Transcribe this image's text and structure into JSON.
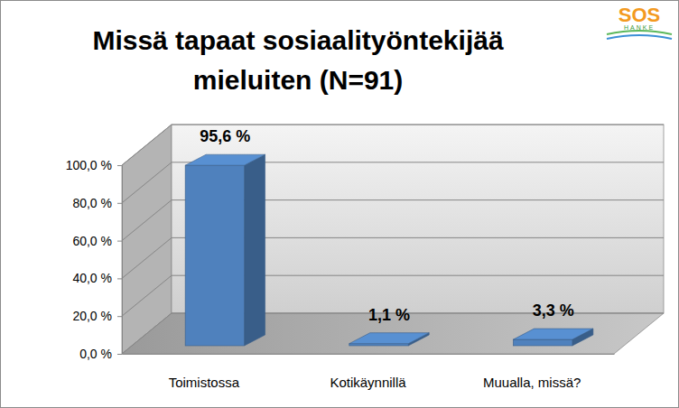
{
  "chart_data": {
    "type": "bar",
    "title": "Missä tapaat sosiaalityöntekijää mieluiten (N=91)",
    "annotations": [
      "SOS",
      "HANKE"
    ],
    "categories": [
      "Toimistossa",
      "Kotikäynnillä",
      "Muualla, missä?"
    ],
    "values": [
      95.6,
      1.1,
      3.3
    ],
    "value_labels": [
      "95,6 %",
      "1,1 %",
      "3,3 %"
    ],
    "color": "#4f81bd",
    "ylim": [
      0,
      100
    ],
    "yticks": [
      {
        "value": 0,
        "label": "0,0 %"
      },
      {
        "value": 20,
        "label": "20,0 %"
      },
      {
        "value": 40,
        "label": "40,0 %"
      },
      {
        "value": 60,
        "label": "60,0 %"
      },
      {
        "value": 80,
        "label": "80,0 %"
      },
      {
        "value": 100,
        "label": "100,0 %"
      }
    ],
    "grid": true,
    "data_labels": true
  }
}
